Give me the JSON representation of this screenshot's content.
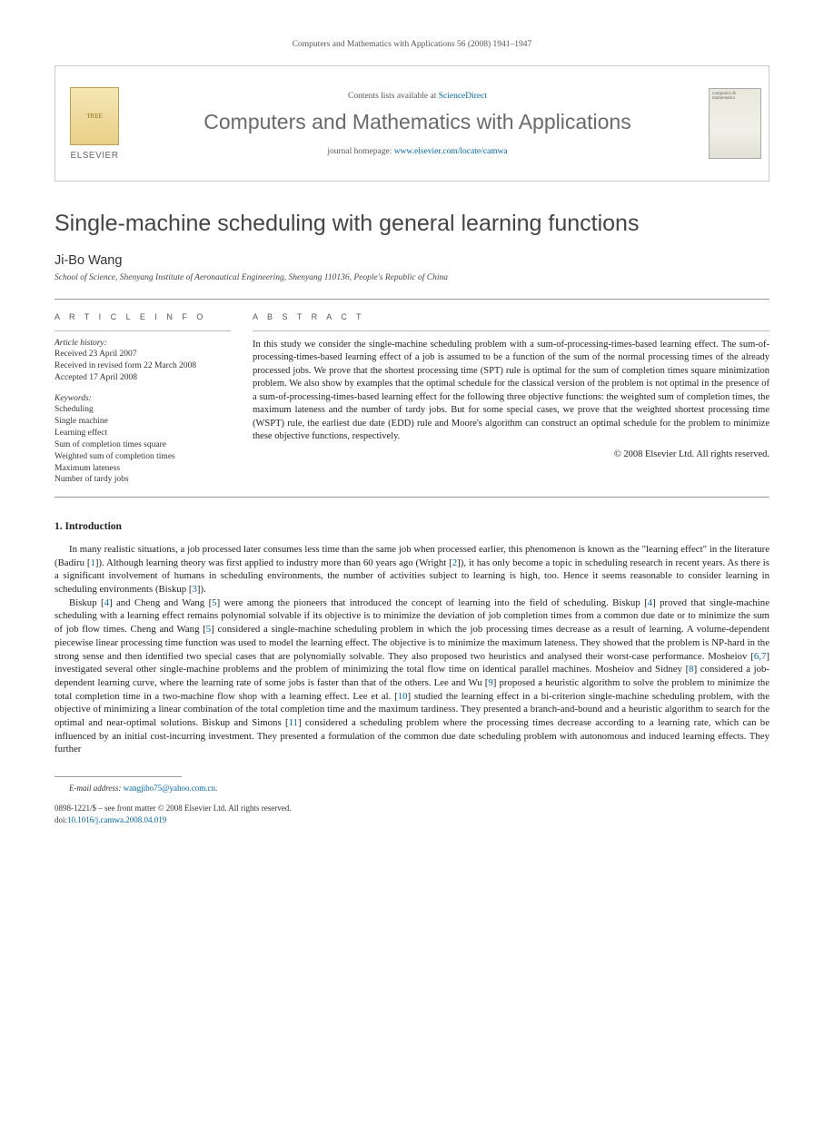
{
  "citation": "Computers and Mathematics with Applications 56 (2008) 1941–1947",
  "header": {
    "contents_prefix": "Contents lists available at ",
    "contents_link": "ScienceDirect",
    "journal": "Computers and Mathematics with Applications",
    "homepage_prefix": "journal homepage: ",
    "homepage_url": "www.elsevier.com/locate/camwa",
    "publisher_label": "ELSEVIER",
    "cover_text": "computers & mathematics"
  },
  "title": "Single-machine scheduling with general learning functions",
  "author": "Ji-Bo Wang",
  "affiliation": "School of Science, Shenyang Institute of Aeronautical Engineering, Shenyang 110136, People's Republic of China",
  "article_info_head": "A R T I C L E   I N F O",
  "abstract_head": "A B S T R A C T",
  "history": {
    "label": "Article history:",
    "received": "Received 23 April 2007",
    "revised": "Received in revised form 22 March 2008",
    "accepted": "Accepted 17 April 2008"
  },
  "keywords": {
    "label": "Keywords:",
    "items": [
      "Scheduling",
      "Single machine",
      "Learning effect",
      "Sum of completion times square",
      "Weighted sum of completion times",
      "Maximum lateness",
      "Number of tardy jobs"
    ]
  },
  "abstract": "In this study we consider the single-machine scheduling problem with a sum-of-processing-times-based learning effect. The sum-of-processing-times-based learning effect of a job is assumed to be a function of the sum of the normal processing times of the already processed jobs. We prove that the shortest processing time (SPT) rule is optimal for the sum of completion times square minimization problem. We also show by examples that the optimal schedule for the classical version of the problem is not optimal in the presence of a sum-of-processing-times-based learning effect for the following three objective functions: the weighted sum of completion times, the maximum lateness and the number of tardy jobs. But for some special cases, we prove that the weighted shortest processing time (WSPT) rule, the earliest due date (EDD) rule and Moore's algorithm can construct an optimal schedule for the problem to minimize these objective functions, respectively.",
  "copyright": "© 2008 Elsevier Ltd. All rights reserved.",
  "section1_heading": "1. Introduction",
  "para1": "In many realistic situations, a job processed later consumes less time than the same job when processed earlier, this phenomenon is known as the \"learning effect\" in the literature (Badiru [1]). Although learning theory was first applied to industry more than 60 years ago (Wright [2]), it has only become a topic in scheduling research in recent years. As there is a significant involvement of humans in scheduling environments, the number of activities subject to learning is high, too. Hence it seems reasonable to consider learning in scheduling environments (Biskup [3]).",
  "para2": "Biskup [4] and Cheng and Wang [5] were among the pioneers that introduced the concept of learning into the field of scheduling. Biskup [4] proved that single-machine scheduling with a learning effect remains polynomial solvable if its objective is to minimize the deviation of job completion times from a common due date or to minimize the sum of job flow times. Cheng and Wang [5] considered a single-machine scheduling problem in which the job processing times decrease as a result of learning. A volume-dependent piecewise linear processing time function was used to model the learning effect. The objective is to minimize the maximum lateness. They showed that the problem is NP-hard in the strong sense and then identified two special cases that are polynomially solvable. They also proposed two heuristics and analysed their worst-case performance. Mosheiov [6,7] investigated several other single-machine problems and the problem of minimizing the total flow time on identical parallel machines. Mosheiov and Sidney [8] considered a job-dependent learning curve, where the learning rate of some jobs is faster than that of the others. Lee and Wu [9] proposed a heuristic algorithm to solve the problem to minimize the total completion time in a two-machine flow shop with a learning effect. Lee et al. [10] studied the learning effect in a bi-criterion single-machine scheduling problem, with the objective of minimizing a linear combination of the total completion time and the maximum tardiness. They presented a branch-and-bound and a heuristic algorithm to search for the optimal and near-optimal solutions. Biskup and Simons [11] considered a scheduling problem where the processing times decrease according to a learning rate, which can be influenced by an initial cost-incurring investment. They presented a formulation of the common due date scheduling problem with autonomous and induced learning effects. They further",
  "footer": {
    "email_label": "E-mail address: ",
    "email": "wangjibo75@yahoo.com.cn",
    "issn_line": "0898-1221/$ – see front matter © 2008 Elsevier Ltd. All rights reserved.",
    "doi_label": "doi:",
    "doi": "10.1016/j.camwa.2008.04.019"
  },
  "colors": {
    "text": "#333333",
    "link": "#0066aa",
    "rule": "#999999",
    "journal_gray": "#6a6a6a",
    "background": "#ffffff"
  },
  "typography": {
    "body_fontsize_pt": 10.8,
    "title_fontsize_pt": 25,
    "author_fontsize_pt": 14.5,
    "small_fontsize_pt": 9.5,
    "line_height": 1.36
  },
  "refs": [
    "1",
    "2",
    "3",
    "4",
    "5",
    "6",
    "7",
    "8",
    "9",
    "10",
    "11"
  ]
}
